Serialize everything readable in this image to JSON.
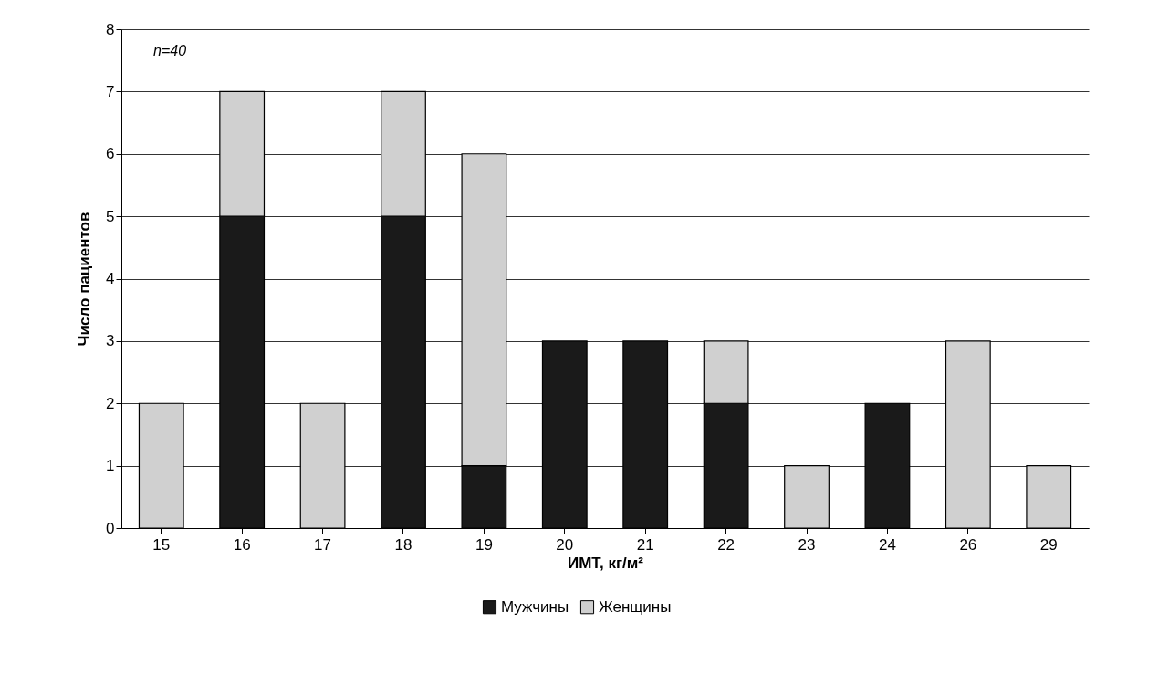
{
  "chart_data": {
    "type": "bar",
    "stacked": true,
    "xlabel": "ИМТ, кг/м²",
    "ylabel": "Число пациентов",
    "categories": [
      "15",
      "16",
      "17",
      "18",
      "19",
      "20",
      "21",
      "22",
      "23",
      "24",
      "26",
      "29"
    ],
    "series": [
      {
        "name": "Мужчины",
        "color": "#1a1a1a",
        "values": [
          0,
          5,
          0,
          5,
          1,
          3,
          3,
          2,
          0,
          2,
          0,
          0
        ]
      },
      {
        "name": "Женщины",
        "color": "#d0d0d0",
        "values": [
          2,
          2,
          2,
          2,
          5,
          0,
          0,
          1,
          1,
          0,
          3,
          1
        ]
      }
    ],
    "ylim": [
      0,
      8
    ],
    "yticks": [
      0,
      1,
      2,
      3,
      4,
      5,
      6,
      7,
      8
    ],
    "grid": "y",
    "legend": "bottom",
    "annotations": [
      "n=40"
    ]
  }
}
